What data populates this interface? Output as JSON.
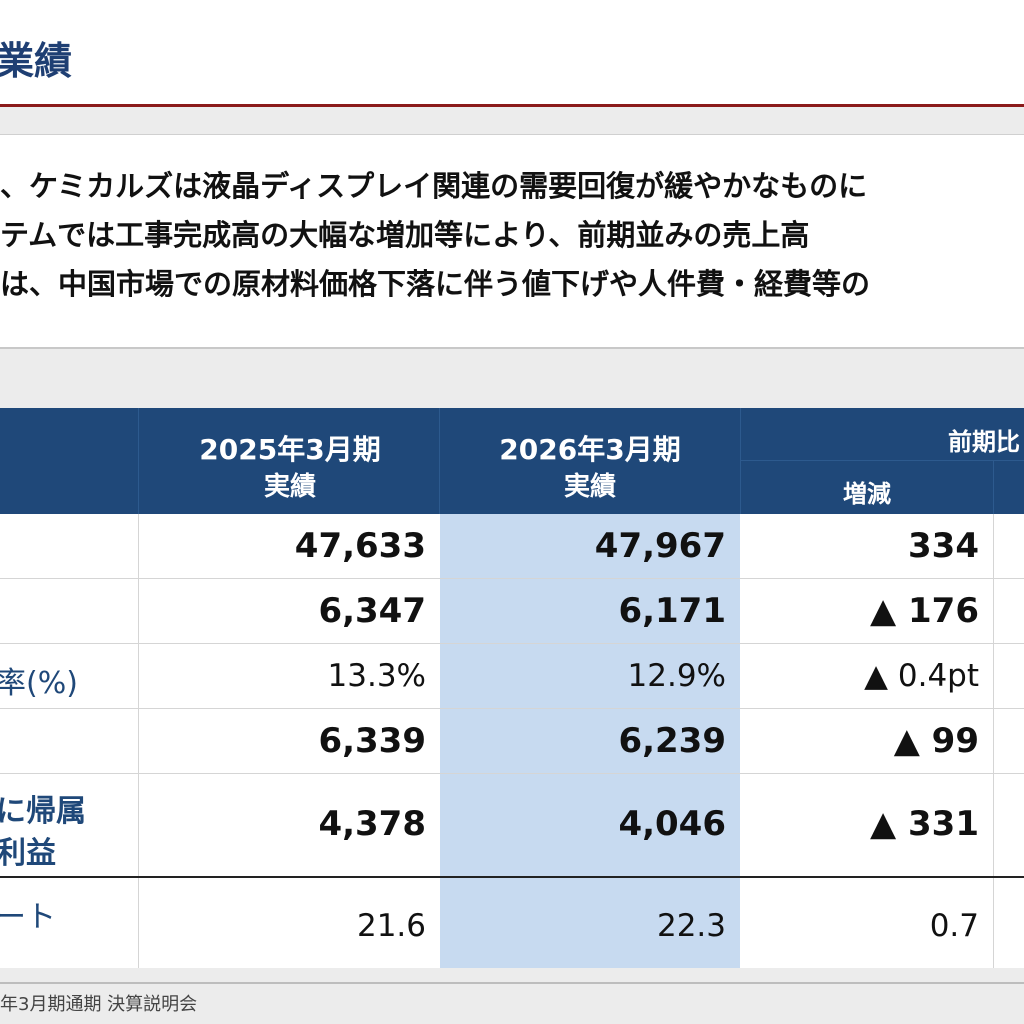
{
  "page": {
    "title": "業績"
  },
  "summary": {
    "lines": [
      "、ケミカルズは液晶ディスプレイ関連の需要回復が緩やかなものに",
      "テムでは工事完成高の大幅な増加等により、前期並みの売上高",
      "は、中国市場での原材料価格下落に伴う値下げや人件費・経費等の"
    ]
  },
  "table": {
    "headers": {
      "fy2025": [
        "2025年3月期",
        "実績"
      ],
      "fy2026": [
        "2026年3月期",
        "実績"
      ],
      "compare": "前期比",
      "change": "増減"
    },
    "rows": [
      {
        "label": "",
        "fy2025": "47,633",
        "fy2026": "47,967",
        "change": "334"
      },
      {
        "label": "",
        "fy2025": "6,347",
        "fy2026": "6,171",
        "change": "▲ 176"
      },
      {
        "label": "率(%)",
        "fy2025": "13.3%",
        "fy2026": "12.9%",
        "change": "▲ 0.4pt"
      },
      {
        "label": "",
        "fy2025": "6,339",
        "fy2026": "6,239",
        "change": "▲ 99"
      },
      {
        "label": "に帰属\n利益",
        "label1": "に帰属",
        "label2": "利益",
        "fy2025": "4,378",
        "fy2026": "4,046",
        "change": "▲ 331"
      },
      {
        "label": "ート",
        "fy2025": "21.6",
        "fy2026": "22.3",
        "change": "0.7"
      }
    ]
  },
  "footer": {
    "text": "年3月期通期 決算説明会"
  },
  "colors": {
    "header_bg": "#1f4879",
    "highlight": "#c7daf0",
    "accent_line": "#8b1a1a"
  }
}
